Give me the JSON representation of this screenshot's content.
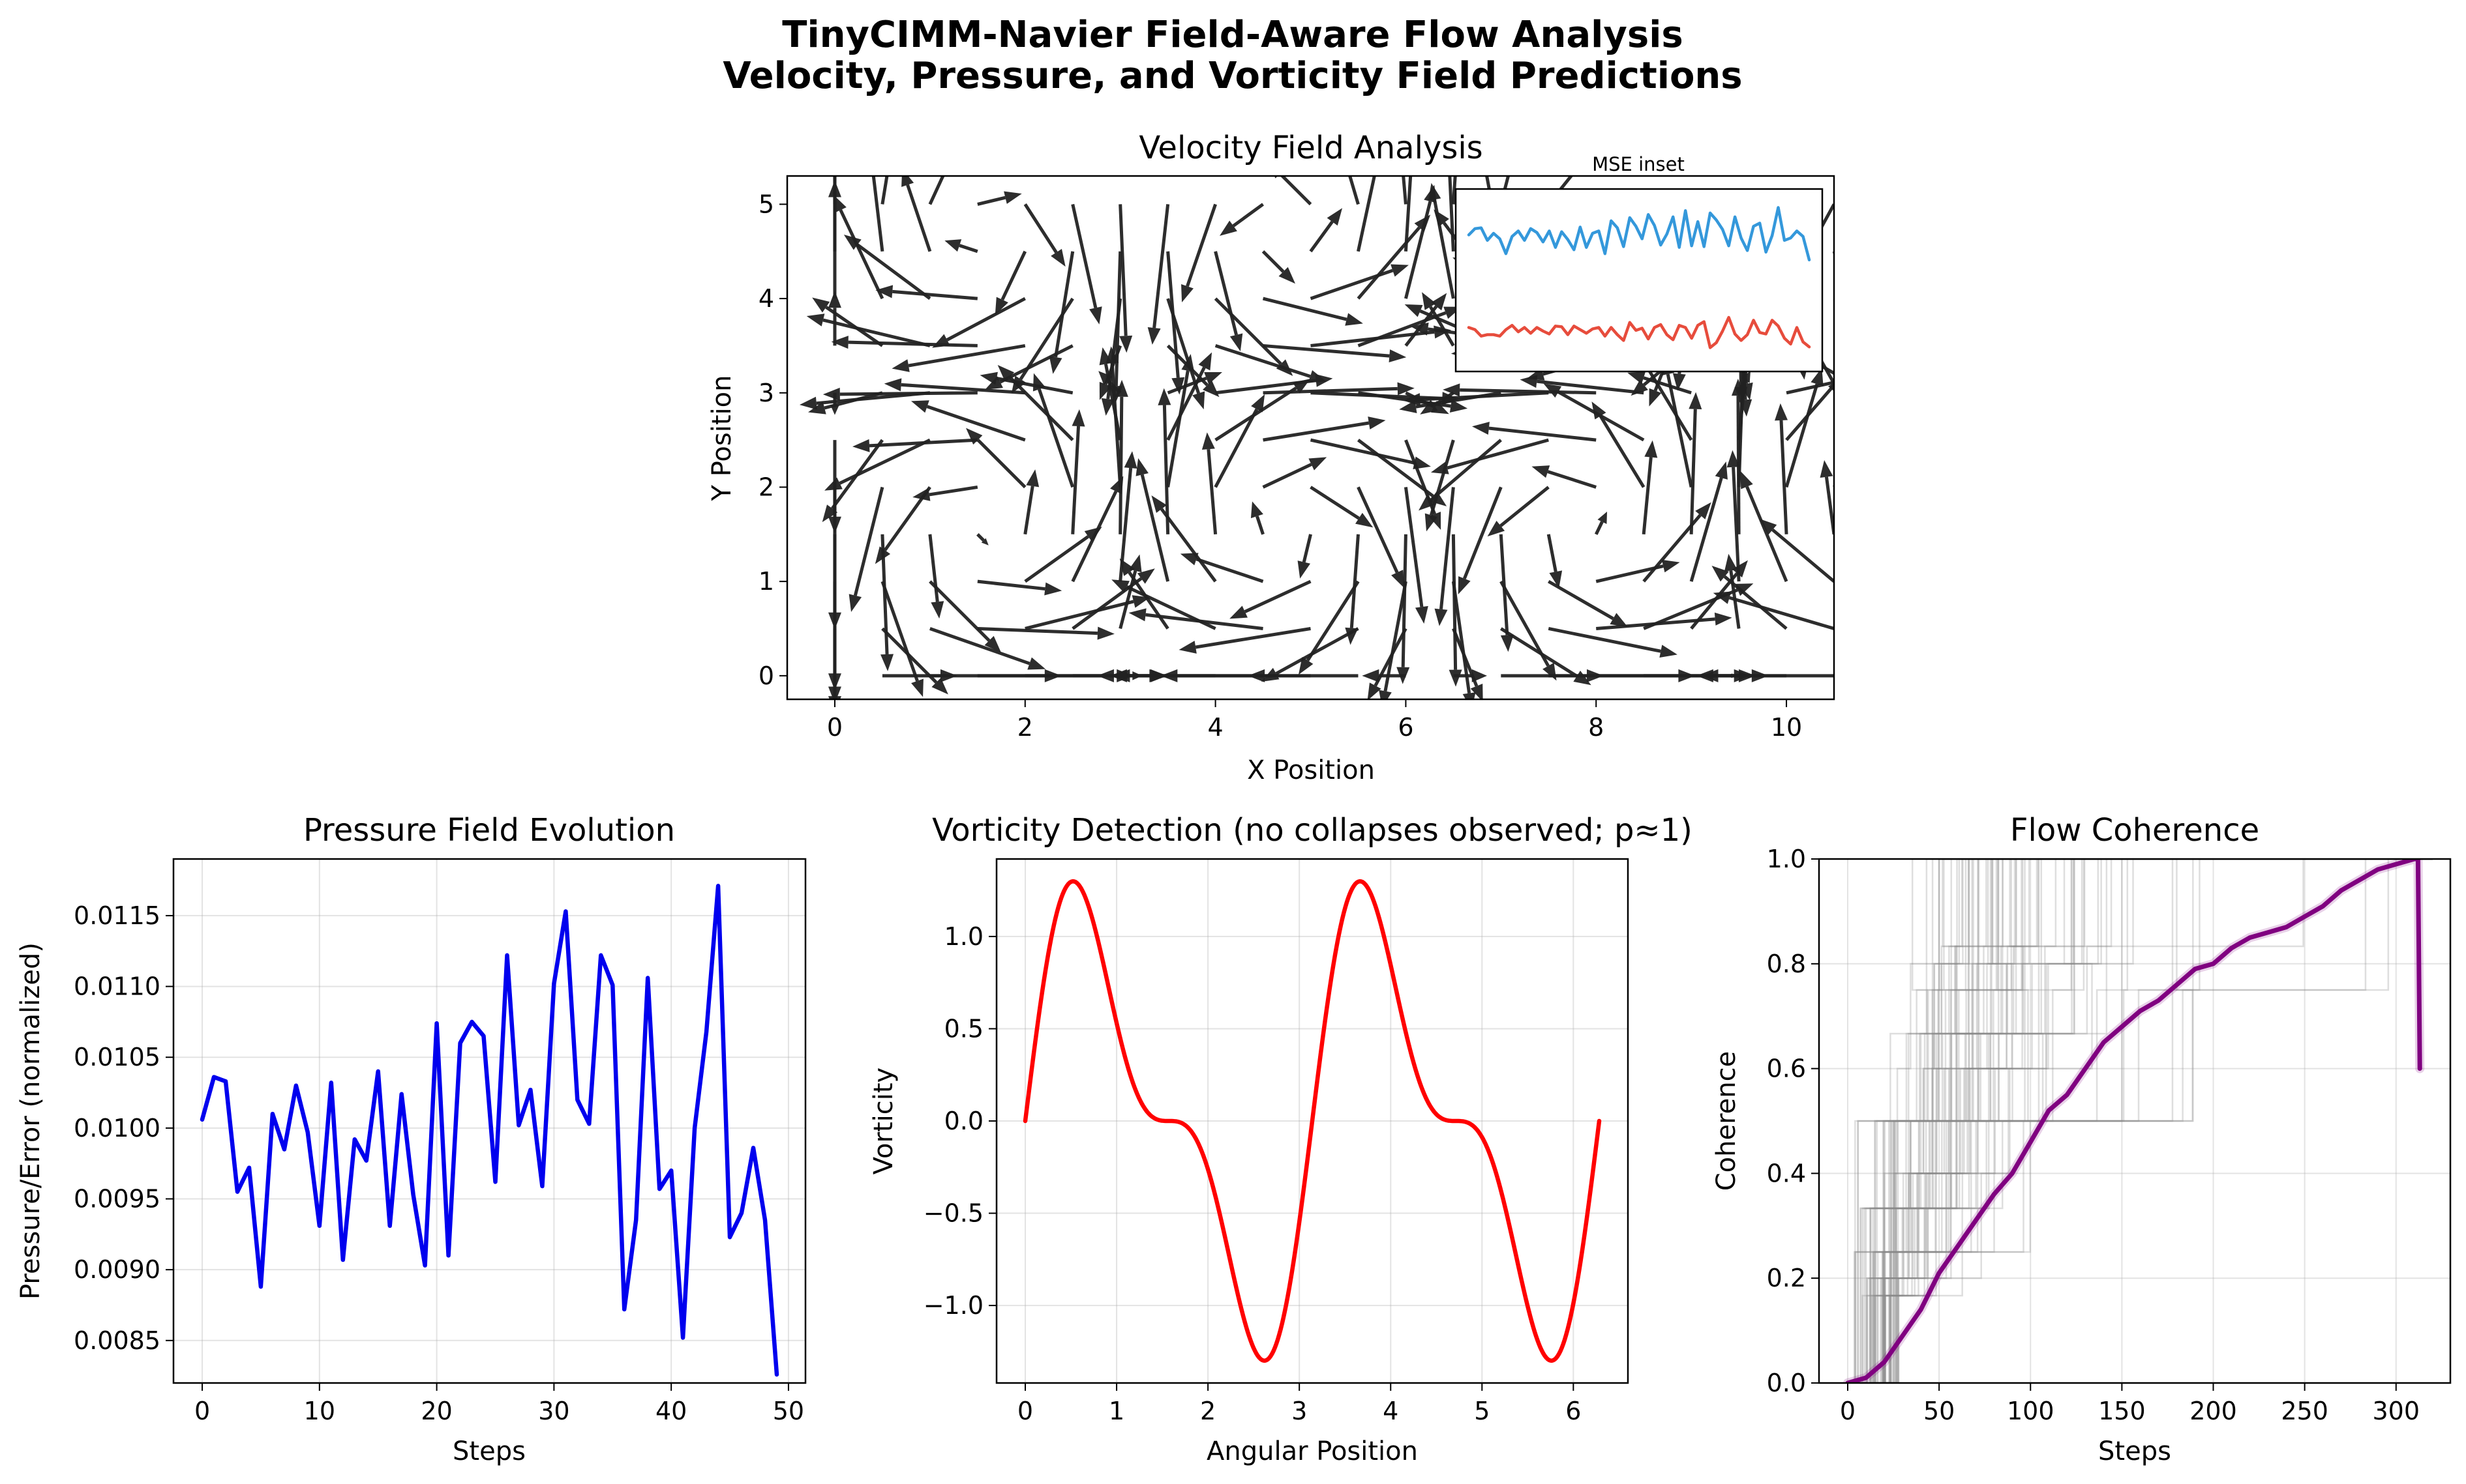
{
  "figure": {
    "title_line1": "TinyCIMM-Navier Field-Aware Flow Analysis",
    "title_line2": "Velocity, Pressure, and Vorticity Field Predictions"
  },
  "colors": {
    "arrow": "#222222",
    "pressure": "#0000ee",
    "vorticity": "#ff0000",
    "coherence_mean": "#800080",
    "coherence_runs": "#888888",
    "inset_upper": "#3498db",
    "inset_lower": "#e74c3c"
  },
  "chart_data": [
    {
      "id": "velocity",
      "type": "quiver",
      "title": "Velocity Field Analysis",
      "xlabel": "X Position",
      "ylabel": "Y Position",
      "xlim": [
        -0.5,
        10.5
      ],
      "ylim": [
        -0.25,
        5.3
      ],
      "xticks": [
        0,
        2,
        4,
        6,
        8,
        10
      ],
      "yticks": [
        0,
        1,
        2,
        3,
        4,
        5
      ],
      "grid": false,
      "field": "u = sin(x)·cos(y), v = -cos(x)·sin(y); grid x 0..10.5 step 0.5, y 0..5.25 step 0.5",
      "inset": {
        "label": "MSE inset",
        "series": [
          {
            "values": [
              0.62,
              0.7,
              0.71,
              0.55,
              0.64,
              0.57,
              0.38,
              0.6,
              0.67,
              0.55,
              0.7,
              0.65,
              0.53,
              0.67,
              0.46,
              0.66,
              0.56,
              0.43,
              0.72,
              0.46,
              0.64,
              0.67,
              0.38,
              0.8,
              0.71,
              0.47,
              0.84,
              0.73,
              0.57,
              0.88,
              0.74,
              0.49,
              0.63,
              0.85,
              0.46,
              0.93,
              0.48,
              0.79,
              0.47,
              0.9,
              0.81,
              0.69,
              0.48,
              0.85,
              0.58,
              0.42,
              0.73,
              0.77,
              0.4,
              0.61,
              0.97,
              0.55,
              0.58,
              0.67,
              0.6,
              0.3
            ]
          },
          {
            "values": [
              0.3,
              0.27,
              0.18,
              0.2,
              0.2,
              0.18,
              0.27,
              0.33,
              0.24,
              0.3,
              0.22,
              0.3,
              0.25,
              0.21,
              0.32,
              0.31,
              0.2,
              0.32,
              0.27,
              0.22,
              0.28,
              0.3,
              0.18,
              0.3,
              0.2,
              0.12,
              0.37,
              0.26,
              0.29,
              0.14,
              0.3,
              0.34,
              0.2,
              0.13,
              0.33,
              0.3,
              0.15,
              0.33,
              0.38,
              0.02,
              0.09,
              0.25,
              0.44,
              0.21,
              0.12,
              0.2,
              0.4,
              0.23,
              0.21,
              0.4,
              0.32,
              0.15,
              0.07,
              0.3,
              0.1,
              0.03
            ]
          }
        ]
      }
    },
    {
      "id": "pressure",
      "type": "line",
      "title": "Pressure Field Evolution",
      "xlabel": "Steps",
      "ylabel": "Pressure/Error (normalized)",
      "xlim": [
        -2.45,
        51.45
      ],
      "ylim": [
        0.0082,
        0.0119
      ],
      "xticks": [
        0,
        10,
        20,
        30,
        40,
        50
      ],
      "yticks": [
        0.0085,
        0.009,
        0.0095,
        0.01,
        0.0105,
        0.011,
        0.0115
      ],
      "ytick_labels": [
        "0.0085",
        "0.0090",
        "0.0095",
        "0.0100",
        "0.0105",
        "0.0110",
        "0.0115"
      ],
      "grid": true,
      "x": [
        0,
        1,
        2,
        3,
        4,
        5,
        6,
        7,
        8,
        9,
        10,
        11,
        12,
        13,
        14,
        15,
        16,
        17,
        18,
        19,
        20,
        21,
        22,
        23,
        24,
        25,
        26,
        27,
        28,
        29,
        30,
        31,
        32,
        33,
        34,
        35,
        36,
        37,
        38,
        39,
        40,
        41,
        42,
        43,
        44,
        45,
        46,
        47,
        48,
        49
      ],
      "values": [
        0.01006,
        0.01036,
        0.01033,
        0.00955,
        0.00972,
        0.00888,
        0.0101,
        0.00985,
        0.0103,
        0.00997,
        0.00931,
        0.01032,
        0.00907,
        0.00992,
        0.00977,
        0.0104,
        0.00931,
        0.01024,
        0.00953,
        0.00903,
        0.01074,
        0.0091,
        0.0106,
        0.01075,
        0.01065,
        0.00962,
        0.01122,
        0.01002,
        0.01027,
        0.00959,
        0.01102,
        0.01153,
        0.0102,
        0.01003,
        0.01122,
        0.01101,
        0.00872,
        0.00935,
        0.01106,
        0.00957,
        0.0097,
        0.00852,
        0.01,
        0.01068,
        0.01171,
        0.00923,
        0.0094,
        0.00986,
        0.00935,
        0.00826
      ]
    },
    {
      "id": "vorticity",
      "type": "line",
      "title": "Vorticity Detection (no collapses observed; p≈1)",
      "xlabel": "Angular Position",
      "ylabel": "Vorticity",
      "xlim": [
        -0.3142,
        6.5973
      ],
      "ylim": [
        -1.42,
        1.42
      ],
      "xticks": [
        0,
        1,
        2,
        3,
        4,
        5,
        6
      ],
      "yticks": [
        -1.0,
        -0.5,
        0.0,
        0.5,
        1.0
      ],
      "ytick_labels": [
        "−1.0",
        "−0.5",
        "0.0",
        "0.5",
        "1.0"
      ],
      "grid": true,
      "function": "sin(2x) + 0.5·sin(4x), x from 0 to 2π"
    },
    {
      "id": "coherence",
      "type": "line",
      "title": "Flow Coherence",
      "xlabel": "Steps",
      "ylabel": "Coherence",
      "xlim": [
        -15.7,
        329.7
      ],
      "ylim": [
        0.0,
        1.0
      ],
      "xticks": [
        0,
        50,
        100,
        150,
        200,
        250,
        300
      ],
      "yticks": [
        0.0,
        0.2,
        0.4,
        0.6,
        0.8,
        1.0
      ],
      "ytick_labels": [
        "0.0",
        "0.2",
        "0.4",
        "0.6",
        "0.8",
        "1.0"
      ],
      "grid": true,
      "mean_series": {
        "x": [
          0,
          10,
          20,
          30,
          40,
          50,
          60,
          70,
          80,
          90,
          100,
          110,
          120,
          130,
          140,
          150,
          160,
          170,
          180,
          190,
          200,
          210,
          220,
          230,
          240,
          250,
          260,
          270,
          280,
          290,
          300,
          310,
          312,
          313
        ],
        "values": [
          0.0,
          0.01,
          0.04,
          0.09,
          0.14,
          0.21,
          0.26,
          0.31,
          0.36,
          0.4,
          0.46,
          0.52,
          0.55,
          0.6,
          0.65,
          0.68,
          0.71,
          0.73,
          0.76,
          0.79,
          0.8,
          0.83,
          0.85,
          0.86,
          0.87,
          0.89,
          0.91,
          0.94,
          0.96,
          0.98,
          0.99,
          1.0,
          1.0,
          0.6
        ]
      },
      "runs_note": "many thin grey step curves (individual runs)"
    }
  ]
}
